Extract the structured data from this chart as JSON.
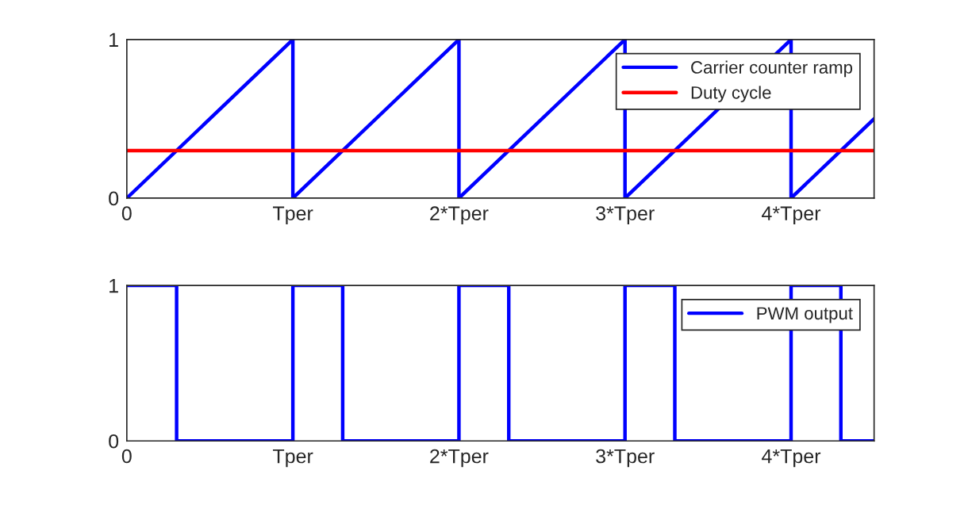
{
  "chart_data": [
    {
      "type": "line",
      "xlim": [
        0,
        4.5
      ],
      "ylim": [
        0,
        1
      ],
      "xticks": [
        {
          "value": 0,
          "label": "0"
        },
        {
          "value": 1,
          "label": "Tper"
        },
        {
          "value": 2,
          "label": "2*Tper"
        },
        {
          "value": 3,
          "label": "3*Tper"
        },
        {
          "value": 4,
          "label": "4*Tper"
        }
      ],
      "yticks": [
        0,
        1
      ],
      "legend": "top right",
      "grid": false,
      "series": [
        {
          "name": "Carrier counter ramp",
          "color": "#0000ff",
          "x": [
            0,
            1,
            1,
            2,
            2,
            3,
            3,
            4,
            4,
            4.5
          ],
          "values": [
            0,
            1,
            0,
            1,
            0,
            1,
            0,
            1,
            0,
            0.5
          ]
        },
        {
          "name": "Duty cycle",
          "color": "#ff0000",
          "x": [
            0,
            4.5
          ],
          "values": [
            0.3,
            0.3
          ]
        }
      ]
    },
    {
      "type": "line",
      "xlim": [
        0,
        4.5
      ],
      "ylim": [
        0,
        1
      ],
      "xticks": [
        {
          "value": 0,
          "label": "0"
        },
        {
          "value": 1,
          "label": "Tper"
        },
        {
          "value": 2,
          "label": "2*Tper"
        },
        {
          "value": 3,
          "label": "3*Tper"
        },
        {
          "value": 4,
          "label": "4*Tper"
        }
      ],
      "yticks": [
        0,
        1
      ],
      "legend": "top right",
      "grid": false,
      "series": [
        {
          "name": "PWM output",
          "color": "#0000ff",
          "x": [
            0,
            0.3,
            0.3,
            1,
            1,
            1.3,
            1.3,
            2,
            2,
            2.3,
            2.3,
            3,
            3,
            3.3,
            3.3,
            4,
            4,
            4.3,
            4.3,
            4.5
          ],
          "values": [
            1,
            1,
            0,
            0,
            1,
            1,
            0,
            0,
            1,
            1,
            0,
            0,
            1,
            1,
            0,
            0,
            1,
            1,
            0,
            0
          ]
        }
      ]
    }
  ]
}
